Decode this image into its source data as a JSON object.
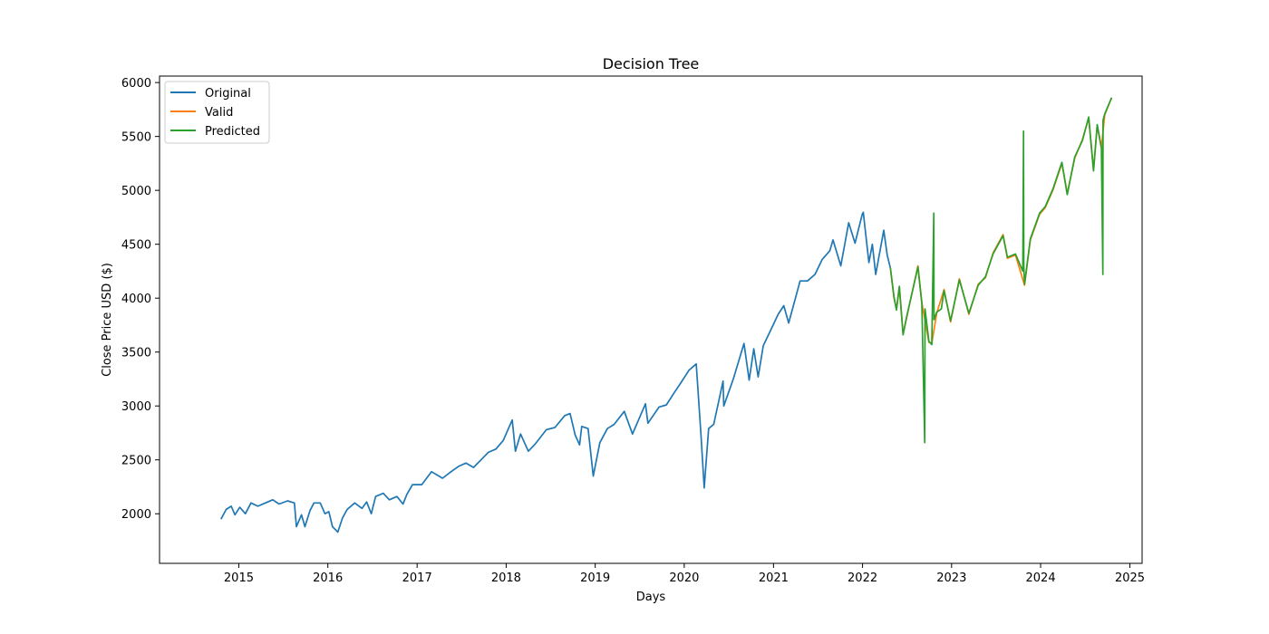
{
  "chart_data": {
    "type": "line",
    "title": "Decision Tree",
    "xlabel": "Days",
    "ylabel": "Close Price USD ($)",
    "x_is_date": true,
    "xlim": [
      "2014-02-10",
      "2025-02-20"
    ],
    "ylim": [
      1540,
      6060
    ],
    "xticks": [
      "2015",
      "2016",
      "2017",
      "2018",
      "2019",
      "2020",
      "2021",
      "2022",
      "2023",
      "2024",
      "2025"
    ],
    "yticks": [
      2000,
      2500,
      3000,
      3500,
      4000,
      4500,
      5000,
      5500,
      6000
    ],
    "grid": false,
    "legend_position": "upper-left",
    "series": [
      {
        "name": "Original",
        "color": "#1f77b4",
        "points": [
          [
            "2014-10-20",
            1950
          ],
          [
            "2014-11-10",
            2040
          ],
          [
            "2014-12-01",
            2070
          ],
          [
            "2014-12-16",
            1990
          ],
          [
            "2015-01-05",
            2060
          ],
          [
            "2015-01-28",
            2000
          ],
          [
            "2015-02-20",
            2100
          ],
          [
            "2015-03-20",
            2070
          ],
          [
            "2015-04-20",
            2100
          ],
          [
            "2015-05-20",
            2130
          ],
          [
            "2015-06-15",
            2090
          ],
          [
            "2015-07-20",
            2120
          ],
          [
            "2015-08-17",
            2100
          ],
          [
            "2015-08-25",
            1880
          ],
          [
            "2015-09-15",
            1990
          ],
          [
            "2015-09-29",
            1880
          ],
          [
            "2015-10-20",
            2030
          ],
          [
            "2015-11-05",
            2100
          ],
          [
            "2015-12-01",
            2100
          ],
          [
            "2015-12-20",
            2000
          ],
          [
            "2016-01-05",
            2020
          ],
          [
            "2016-01-20",
            1880
          ],
          [
            "2016-02-11",
            1830
          ],
          [
            "2016-03-01",
            1960
          ],
          [
            "2016-03-20",
            2040
          ],
          [
            "2016-04-20",
            2100
          ],
          [
            "2016-05-20",
            2050
          ],
          [
            "2016-06-08",
            2110
          ],
          [
            "2016-06-27",
            2000
          ],
          [
            "2016-07-15",
            2160
          ],
          [
            "2016-08-15",
            2190
          ],
          [
            "2016-09-09",
            2130
          ],
          [
            "2016-10-10",
            2160
          ],
          [
            "2016-11-04",
            2090
          ],
          [
            "2016-11-20",
            2180
          ],
          [
            "2016-12-13",
            2270
          ],
          [
            "2017-01-20",
            2270
          ],
          [
            "2017-03-01",
            2390
          ],
          [
            "2017-04-15",
            2330
          ],
          [
            "2017-05-20",
            2390
          ],
          [
            "2017-06-20",
            2440
          ],
          [
            "2017-07-20",
            2470
          ],
          [
            "2017-08-20",
            2430
          ],
          [
            "2017-09-20",
            2500
          ],
          [
            "2017-10-20",
            2570
          ],
          [
            "2017-11-20",
            2600
          ],
          [
            "2017-12-20",
            2680
          ],
          [
            "2018-01-26",
            2870
          ],
          [
            "2018-02-08",
            2580
          ],
          [
            "2018-03-01",
            2740
          ],
          [
            "2018-04-02",
            2580
          ],
          [
            "2018-05-01",
            2650
          ],
          [
            "2018-06-15",
            2780
          ],
          [
            "2018-07-20",
            2800
          ],
          [
            "2018-08-29",
            2910
          ],
          [
            "2018-09-20",
            2930
          ],
          [
            "2018-10-11",
            2730
          ],
          [
            "2018-10-29",
            2640
          ],
          [
            "2018-11-07",
            2810
          ],
          [
            "2018-12-03",
            2790
          ],
          [
            "2018-12-24",
            2350
          ],
          [
            "2019-01-20",
            2660
          ],
          [
            "2019-02-20",
            2790
          ],
          [
            "2019-03-20",
            2830
          ],
          [
            "2019-04-30",
            2950
          ],
          [
            "2019-06-03",
            2740
          ],
          [
            "2019-07-26",
            3020
          ],
          [
            "2019-08-05",
            2840
          ],
          [
            "2019-09-20",
            2990
          ],
          [
            "2019-10-20",
            3010
          ],
          [
            "2019-11-20",
            3120
          ],
          [
            "2019-12-20",
            3220
          ],
          [
            "2020-01-20",
            3330
          ],
          [
            "2020-02-19",
            3390
          ],
          [
            "2020-03-09",
            2750
          ],
          [
            "2020-03-23",
            2240
          ],
          [
            "2020-04-10",
            2790
          ],
          [
            "2020-05-01",
            2830
          ],
          [
            "2020-06-08",
            3230
          ],
          [
            "2020-06-11",
            3000
          ],
          [
            "2020-07-20",
            3250
          ],
          [
            "2020-09-02",
            3580
          ],
          [
            "2020-09-23",
            3240
          ],
          [
            "2020-10-12",
            3530
          ],
          [
            "2020-10-30",
            3270
          ],
          [
            "2020-11-20",
            3560
          ],
          [
            "2020-12-20",
            3700
          ],
          [
            "2021-01-20",
            3850
          ],
          [
            "2021-02-12",
            3930
          ],
          [
            "2021-03-04",
            3770
          ],
          [
            "2021-04-20",
            4160
          ],
          [
            "2021-05-20",
            4160
          ],
          [
            "2021-06-20",
            4220
          ],
          [
            "2021-07-20",
            4360
          ],
          [
            "2021-08-20",
            4440
          ],
          [
            "2021-09-02",
            4540
          ],
          [
            "2021-10-04",
            4300
          ],
          [
            "2021-11-05",
            4700
          ],
          [
            "2021-12-01",
            4510
          ],
          [
            "2021-12-31",
            4780
          ],
          [
            "2022-01-04",
            4796
          ],
          [
            "2022-01-27",
            4330
          ],
          [
            "2022-02-10",
            4500
          ],
          [
            "2022-02-24",
            4220
          ],
          [
            "2022-03-29",
            4630
          ],
          [
            "2022-04-12",
            4400
          ],
          [
            "2022-04-25",
            4280
          ]
        ]
      },
      {
        "name": "Valid",
        "color": "#ff7f0e",
        "points": [
          [
            "2022-04-25",
            4280
          ],
          [
            "2022-05-10",
            4000
          ],
          [
            "2022-05-20",
            3900
          ],
          [
            "2022-06-01",
            4100
          ],
          [
            "2022-06-16",
            3670
          ],
          [
            "2022-07-01",
            3820
          ],
          [
            "2022-08-16",
            4300
          ],
          [
            "2022-09-01",
            3960
          ],
          [
            "2022-09-30",
            3590
          ],
          [
            "2022-10-12",
            3580
          ],
          [
            "2022-11-01",
            3860
          ],
          [
            "2022-12-01",
            4080
          ],
          [
            "2022-12-28",
            3780
          ],
          [
            "2023-02-02",
            4180
          ],
          [
            "2023-03-13",
            3850
          ],
          [
            "2023-04-20",
            4130
          ],
          [
            "2023-05-20",
            4190
          ],
          [
            "2023-06-20",
            4420
          ],
          [
            "2023-07-31",
            4590
          ],
          [
            "2023-08-18",
            4370
          ],
          [
            "2023-09-20",
            4400
          ],
          [
            "2023-10-27",
            4120
          ],
          [
            "2023-11-20",
            4540
          ],
          [
            "2023-12-28",
            4780
          ],
          [
            "2024-01-20",
            4840
          ],
          [
            "2024-02-20",
            5000
          ],
          [
            "2024-03-28",
            5250
          ],
          [
            "2024-04-19",
            4970
          ],
          [
            "2024-05-20",
            5300
          ],
          [
            "2024-06-20",
            5470
          ],
          [
            "2024-07-16",
            5670
          ],
          [
            "2024-08-05",
            5190
          ],
          [
            "2024-08-20",
            5600
          ],
          [
            "2024-09-06",
            5400
          ],
          [
            "2024-09-20",
            5700
          ],
          [
            "2024-10-18",
            5860
          ]
        ]
      },
      {
        "name": "Predicted",
        "color": "#2ca02c",
        "points": [
          [
            "2022-04-25",
            4280
          ],
          [
            "2022-05-10",
            4010
          ],
          [
            "2022-05-20",
            3890
          ],
          [
            "2022-06-01",
            4110
          ],
          [
            "2022-06-16",
            3660
          ],
          [
            "2022-07-01",
            3830
          ],
          [
            "2022-08-16",
            4290
          ],
          [
            "2022-09-01",
            3950
          ],
          [
            "2022-09-13",
            2660
          ],
          [
            "2022-09-14",
            3900
          ],
          [
            "2022-09-30",
            3600
          ],
          [
            "2022-10-12",
            3570
          ],
          [
            "2022-10-20",
            4790
          ],
          [
            "2022-10-21",
            3800
          ],
          [
            "2022-11-01",
            3870
          ],
          [
            "2022-11-20",
            3900
          ],
          [
            "2022-12-01",
            4070
          ],
          [
            "2022-12-28",
            3790
          ],
          [
            "2023-02-02",
            4170
          ],
          [
            "2023-03-13",
            3860
          ],
          [
            "2023-04-20",
            4120
          ],
          [
            "2023-05-20",
            4200
          ],
          [
            "2023-06-20",
            4410
          ],
          [
            "2023-07-31",
            4580
          ],
          [
            "2023-08-18",
            4380
          ],
          [
            "2023-09-20",
            4410
          ],
          [
            "2023-10-20",
            4250
          ],
          [
            "2023-10-23",
            5550
          ],
          [
            "2023-10-24",
            4300
          ],
          [
            "2023-10-27",
            4130
          ],
          [
            "2023-11-20",
            4550
          ],
          [
            "2023-12-28",
            4790
          ],
          [
            "2024-01-20",
            4850
          ],
          [
            "2024-02-20",
            5010
          ],
          [
            "2024-03-28",
            5260
          ],
          [
            "2024-04-19",
            4960
          ],
          [
            "2024-05-20",
            5310
          ],
          [
            "2024-06-20",
            5460
          ],
          [
            "2024-07-16",
            5680
          ],
          [
            "2024-08-05",
            5180
          ],
          [
            "2024-08-20",
            5610
          ],
          [
            "2024-09-06",
            5390
          ],
          [
            "2024-09-12",
            4220
          ],
          [
            "2024-09-13",
            5650
          ],
          [
            "2024-09-20",
            5710
          ],
          [
            "2024-10-18",
            5860
          ]
        ]
      }
    ]
  }
}
